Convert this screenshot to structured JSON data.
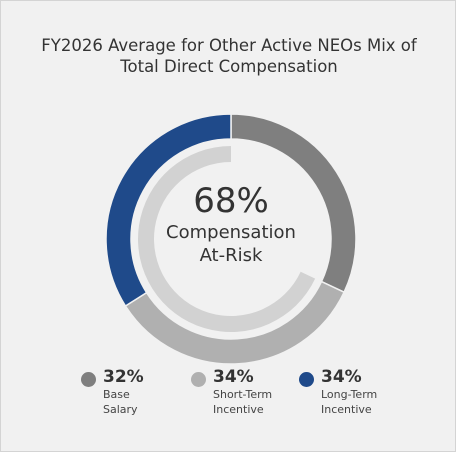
{
  "chart_data": {
    "type": "pie",
    "title": "FY2026 Average for Other Active NEOs Mix of Total Direct Compensation",
    "categories": [
      "Base Salary",
      "Short-Term Incentive",
      "Long-Term Incentive"
    ],
    "values": [
      32,
      34,
      34
    ],
    "value_labels": [
      "32%",
      "34%",
      "34%"
    ],
    "colors": [
      "#7f7f7f",
      "#b0b0b0",
      "#1f4a8a"
    ],
    "annotation": {
      "value": 68,
      "label": "68%",
      "text": "Compensation At-Risk",
      "color": "#d2d2d2"
    }
  }
}
